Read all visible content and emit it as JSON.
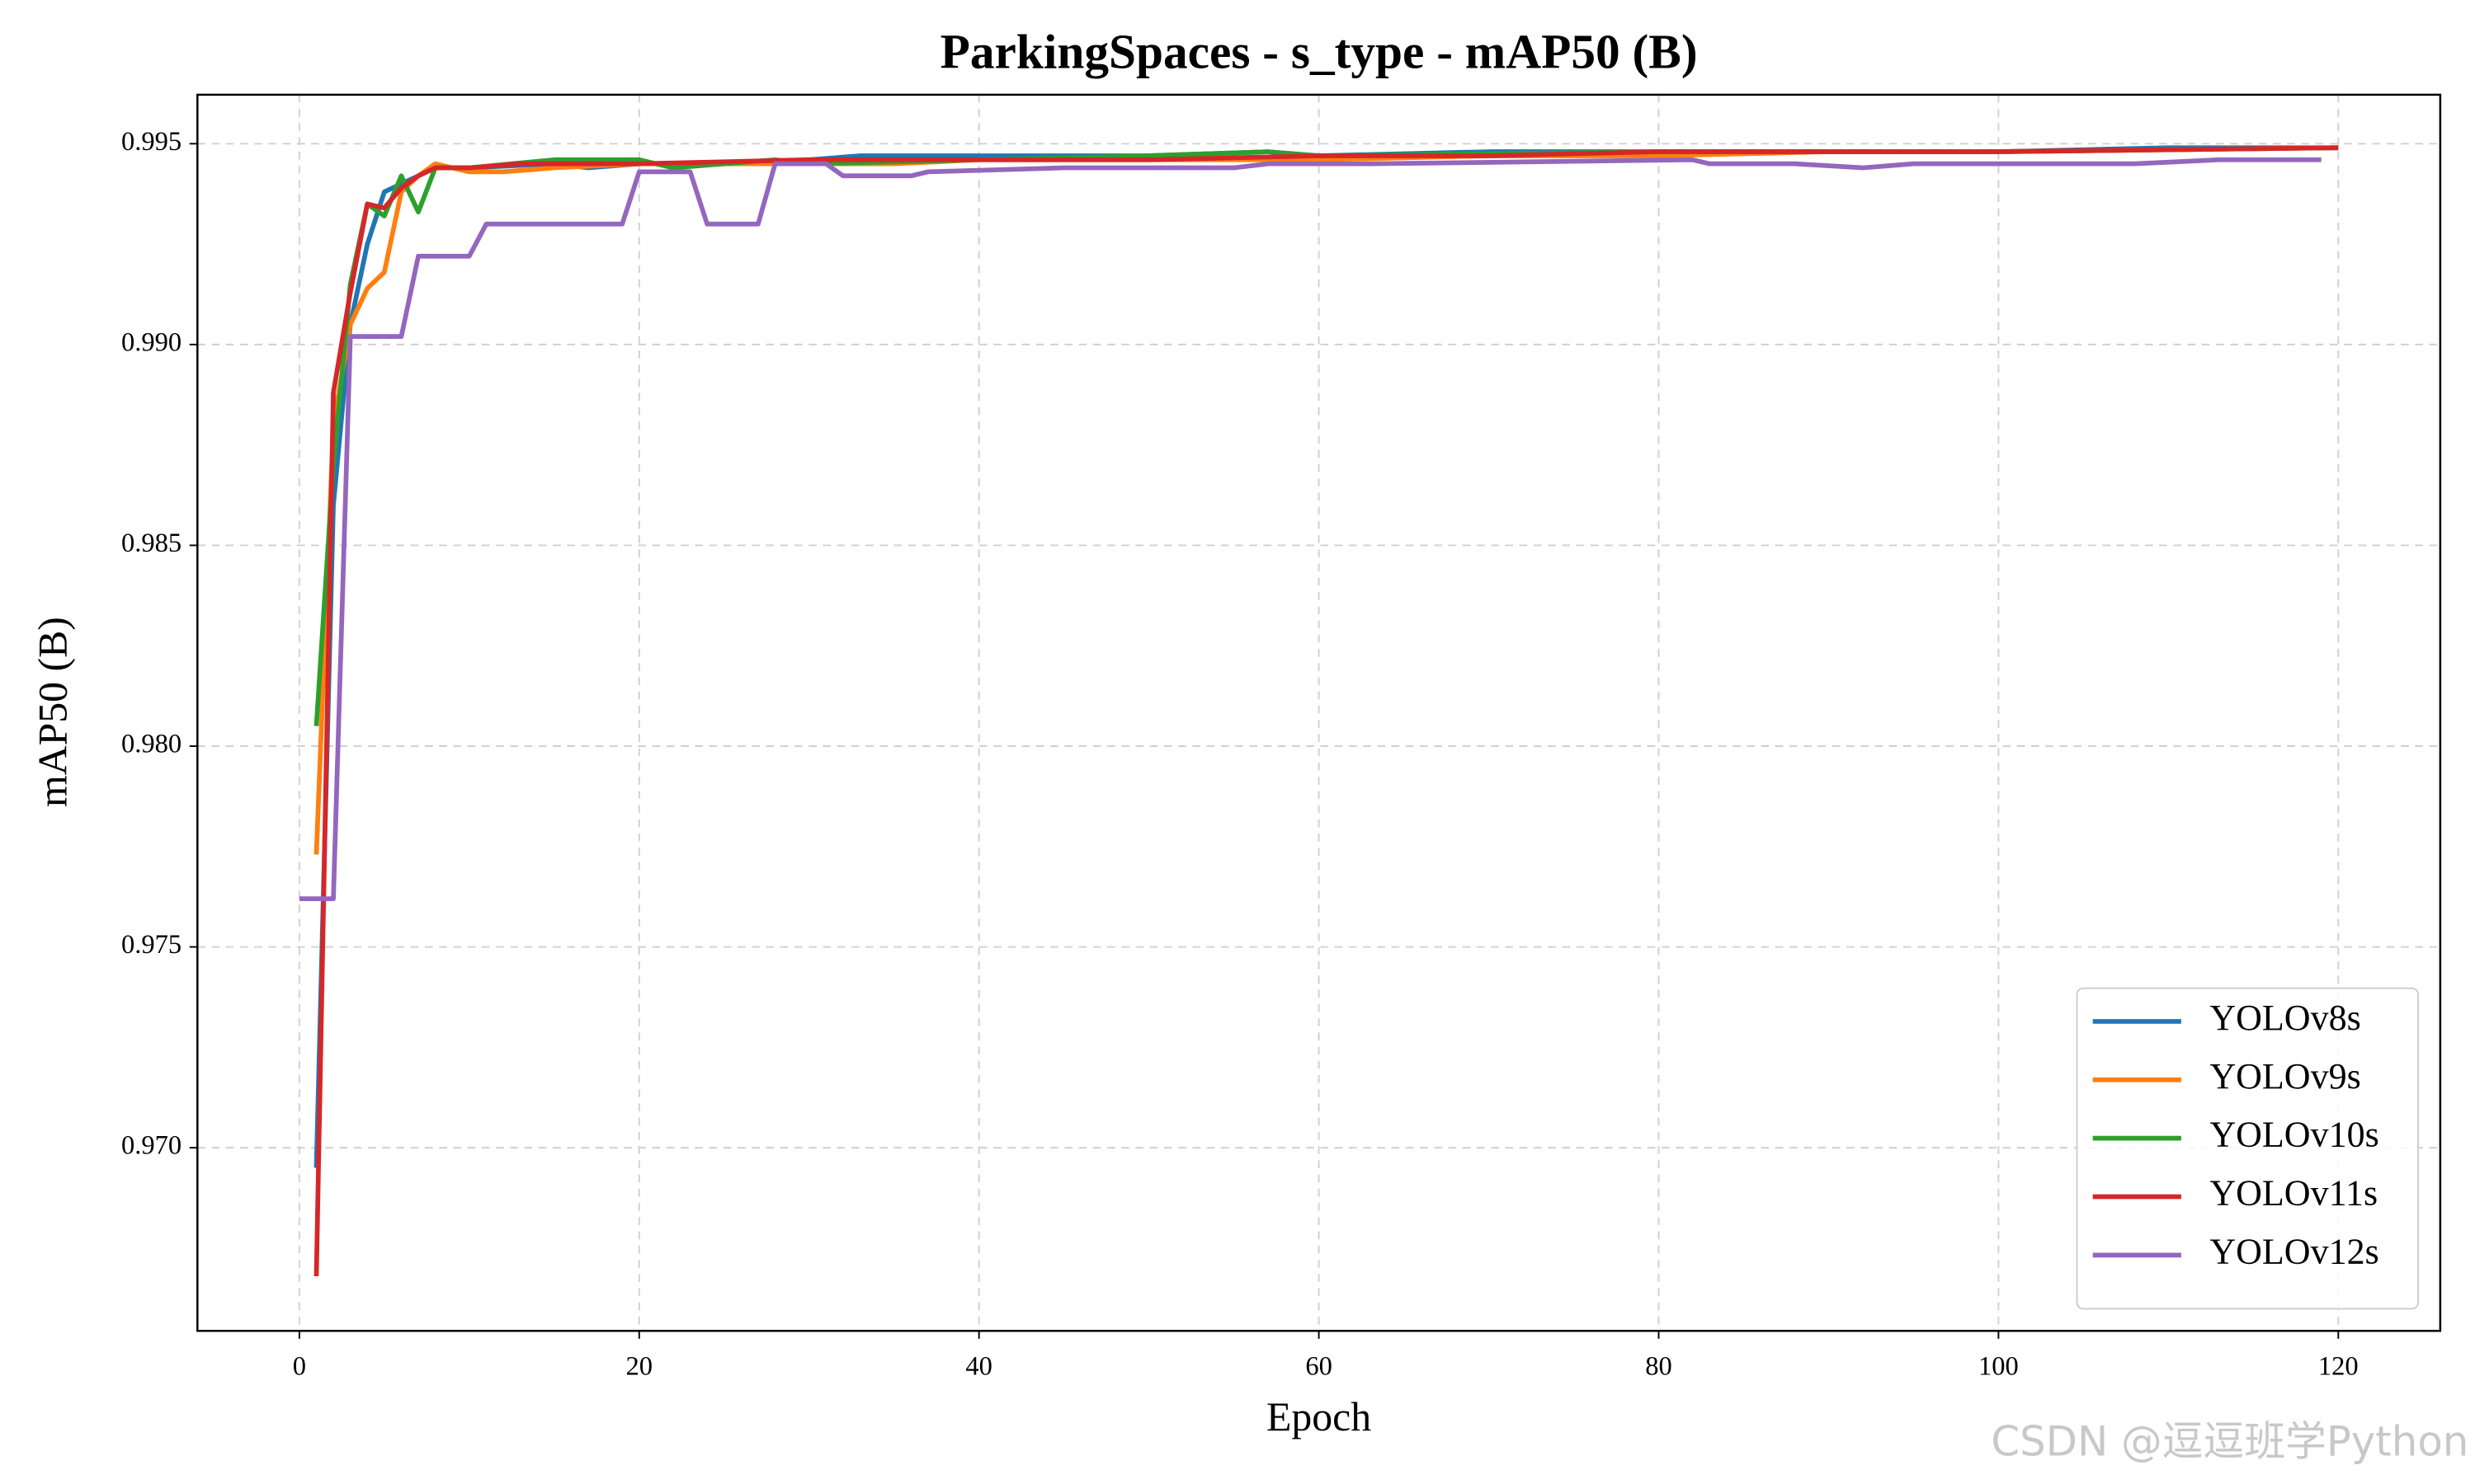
{
  "chart_data": {
    "type": "line",
    "title": "ParkingSpaces - s_type - mAP50 (B)",
    "xlabel": "Epoch",
    "ylabel": "mAP50 (B)",
    "xlim": [
      -6,
      126
    ],
    "ylim": [
      0.96544,
      0.99622
    ],
    "xticks": [
      0,
      20,
      40,
      60,
      80,
      100,
      120
    ],
    "yticks": [
      {
        "value": 0.97,
        "label": "0.970"
      },
      0.975,
      {
        "value": 0.98,
        "label": "0.980"
      },
      0.985,
      {
        "value": 0.99,
        "label": "0.990"
      },
      0.995
    ],
    "grid": true,
    "legend": "lower right",
    "watermark": "CSDN @逗逗班学Python",
    "series": [
      {
        "name": "YOLOv8s",
        "color": "#1f77b4",
        "x": [
          1,
          2,
          3,
          4,
          5,
          6,
          7,
          8,
          10,
          15,
          17,
          20,
          25,
          30,
          33,
          40,
          50,
          57,
          60,
          70,
          80,
          90,
          100,
          110,
          120
        ],
        "values": [
          0.9695,
          0.986,
          0.9905,
          0.9925,
          0.9938,
          0.994,
          0.9942,
          0.9944,
          0.9944,
          0.9945,
          0.9944,
          0.9945,
          0.9945,
          0.9946,
          0.9947,
          0.9947,
          0.9947,
          0.9948,
          0.9947,
          0.9948,
          0.9948,
          0.9948,
          0.9948,
          0.9949,
          0.9949
        ]
      },
      {
        "name": "YOLOv9s",
        "color": "#ff7f0e",
        "x": [
          1,
          2,
          3,
          4,
          5,
          6,
          7,
          8,
          10,
          12,
          15,
          20,
          25,
          30,
          35,
          40,
          50,
          60,
          70,
          80,
          90,
          100,
          120
        ],
        "values": [
          0.9773,
          0.988,
          0.9905,
          0.9914,
          0.9918,
          0.9938,
          0.9942,
          0.9945,
          0.9943,
          0.9943,
          0.9944,
          0.9945,
          0.9945,
          0.9945,
          0.9945,
          0.9946,
          0.9946,
          0.9946,
          0.9947,
          0.9947,
          0.9948,
          0.9948,
          0.9949
        ]
      },
      {
        "name": "YOLOv10s",
        "color": "#2ca02c",
        "x": [
          1,
          2,
          3,
          4,
          5,
          6,
          7,
          8,
          10,
          15,
          20,
          22,
          28,
          30,
          40,
          50,
          57,
          60,
          80,
          100,
          120
        ],
        "values": [
          0.9805,
          0.987,
          0.9915,
          0.9935,
          0.9932,
          0.9942,
          0.9933,
          0.9944,
          0.9944,
          0.9946,
          0.9946,
          0.9944,
          0.9946,
          0.9945,
          0.9946,
          0.9947,
          0.9948,
          0.9947,
          0.9948,
          0.9948,
          0.9949
        ]
      },
      {
        "name": "YOLOv11s",
        "color": "#d62728",
        "x": [
          1,
          2,
          3,
          4,
          5,
          6,
          7,
          8,
          10,
          13,
          20,
          30,
          40,
          50,
          60,
          70,
          80,
          90,
          100,
          120
        ],
        "values": [
          0.9668,
          0.9888,
          0.9913,
          0.9935,
          0.9934,
          0.9939,
          0.9942,
          0.9944,
          0.9944,
          0.9945,
          0.9945,
          0.9946,
          0.9946,
          0.9946,
          0.9947,
          0.9947,
          0.9948,
          0.9948,
          0.9948,
          0.9949
        ]
      },
      {
        "name": "YOLOv12s",
        "color": "#9467bd",
        "x": [
          0,
          2,
          3,
          6,
          7,
          10,
          11,
          19,
          20,
          23,
          24,
          27,
          28,
          31,
          32,
          36,
          37,
          45,
          55,
          57,
          63,
          82,
          83,
          88,
          92,
          95,
          104,
          105,
          108,
          113,
          119
        ],
        "values": [
          0.9762,
          0.9762,
          0.9902,
          0.9902,
          0.9922,
          0.9922,
          0.993,
          0.993,
          0.9943,
          0.9943,
          0.993,
          0.993,
          0.9945,
          0.9945,
          0.9942,
          0.9942,
          0.9943,
          0.9944,
          0.9944,
          0.9945,
          0.9945,
          0.9946,
          0.9945,
          0.9945,
          0.9944,
          0.9945,
          0.9945,
          0.9945,
          0.9945,
          0.9946,
          0.9946
        ]
      }
    ]
  }
}
